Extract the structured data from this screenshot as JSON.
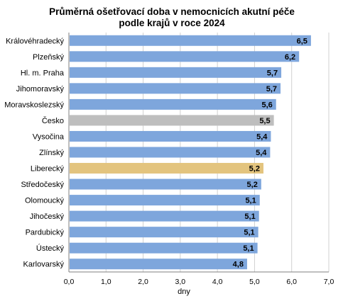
{
  "chart_data": {
    "type": "bar",
    "orientation": "horizontal",
    "title": [
      "Průměrná ošetřovací doba v nemocnicích akutní péče",
      "podle krajů v roce 2024"
    ],
    "xlabel": "dny",
    "ylabel": "",
    "xlim": [
      0,
      7
    ],
    "xticks": [
      "0,0",
      "1,0",
      "2,0",
      "3,0",
      "4,0",
      "5,0",
      "6,0",
      "7,0"
    ],
    "grid": true,
    "categories": [
      "Královéhradecký",
      "Plzeňský",
      "Hl. m. Praha",
      "Jihomoravský",
      "Moravskoslezský",
      "Česko",
      "Vysočina",
      "Zlínský",
      "Liberecký",
      "Středočeský",
      "Olomoucký",
      "Jihočeský",
      "Pardubický",
      "Ústecký",
      "Karlovarský"
    ],
    "values": [
      6.52,
      6.2,
      5.72,
      5.7,
      5.58,
      5.52,
      5.44,
      5.42,
      5.24,
      5.18,
      5.14,
      5.12,
      5.1,
      5.08,
      4.8
    ],
    "data_labels": [
      "6,5",
      "6,2",
      "5,7",
      "5,7",
      "5,6",
      "5,5",
      "5,4",
      "5,4",
      "5,2",
      "5,2",
      "5,1",
      "5,1",
      "5,1",
      "5,1",
      "4,8"
    ],
    "colors": {
      "default": "#7ea6dc",
      "Česko": "#bebebe",
      "Liberecký": "#e3c47e",
      "grid": "#d0d0d0",
      "axis": "#7f7f7f"
    }
  }
}
